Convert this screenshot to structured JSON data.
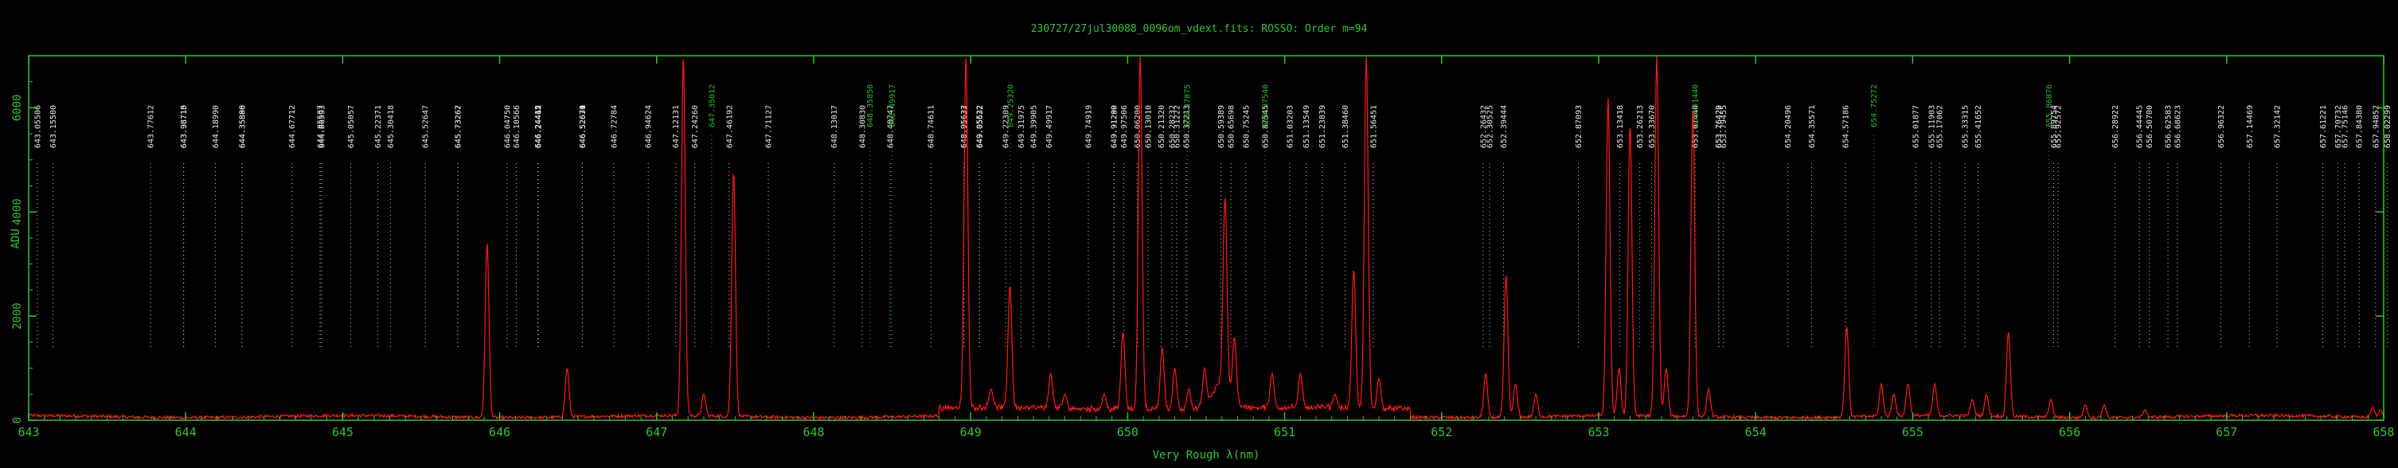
{
  "chart_data": {
    "type": "line",
    "title": "230727/27jul30088_0096om_vdext.fits: ROSSO: Order m=94",
    "xlabel": "Very Rough λ(nm)",
    "ylabel": "ADU",
    "xlim": [
      643,
      658
    ],
    "ylim": [
      0,
      7000
    ],
    "xticks": [
      "643",
      "644",
      "645",
      "646",
      "647",
      "648",
      "649",
      "650",
      "651",
      "652",
      "653",
      "654",
      "655",
      "656",
      "657",
      "658"
    ],
    "yticks": [
      "0",
      "2000",
      "4000",
      "6000"
    ],
    "grid": false,
    "colors": {
      "axis": "#36c236",
      "spectrum": "#ff1a1a",
      "label_white": "#e8e8e8",
      "label_green": "#2fb52f"
    },
    "line_labels_white": [
      "643.05506",
      "643.15500",
      "643.77612",
      "643.98710",
      "643.98715",
      "644.18990",
      "644.35896",
      "644.35880",
      "644.67712",
      "644.85587",
      "644.86593",
      "645.05057",
      "645.22371",
      "645.30418",
      "645.52647",
      "645.73267",
      "645.73262",
      "646.04750",
      "646.10566",
      "646.24412",
      "646.24415",
      "646.24462",
      "646.52679",
      "646.52671",
      "646.52634",
      "646.72784",
      "646.94624",
      "647.12131",
      "647.24260",
      "647.46192",
      "647.71127",
      "648.13017",
      "648.30830",
      "648.48747",
      "648.74611",
      "648.95633",
      "648.95637",
      "649.05632",
      "649.05522",
      "649.22309",
      "649.31975",
      "649.39905",
      "649.49917",
      "649.74919",
      "649.91280",
      "649.91299",
      "649.97506",
      "650.06200",
      "650.13010",
      "650.21320",
      "650.28232",
      "650.31222",
      "650.37213",
      "650.59389",
      "650.65698",
      "650.75245",
      "650.87545",
      "651.03203",
      "651.13549",
      "651.23839",
      "651.38460",
      "651.56451",
      "652.26432",
      "652.30525",
      "652.39444",
      "652.87093",
      "653.13418",
      "653.26213",
      "653.33670",
      "653.61440",
      "653.76422",
      "653.76420",
      "653.79455",
      "654.20496",
      "654.35571",
      "654.57186",
      "655.01877",
      "655.11903",
      "655.17062",
      "655.33315",
      "655.41652",
      "655.89754",
      "655.92572",
      "656.28922",
      "656.44445",
      "656.50700",
      "656.62583",
      "656.68623",
      "656.96322",
      "657.14469",
      "657.32142",
      "657.61221",
      "657.70732",
      "657.75146",
      "657.84380",
      "657.94852",
      "658.02299"
    ],
    "line_labels_green": [
      "647.35012",
      "648.35850",
      "648.49917",
      "649.25320",
      "650.37875",
      "650.87540",
      "653.61440",
      "654.75272",
      "655.86876"
    ],
    "emission_peaks": [
      {
        "x": 645.92,
        "y": 3400
      },
      {
        "x": 646.43,
        "y": 1000
      },
      {
        "x": 647.17,
        "y": 7000
      },
      {
        "x": 647.3,
        "y": 500
      },
      {
        "x": 647.49,
        "y": 4800
      },
      {
        "x": 648.97,
        "y": 7000
      },
      {
        "x": 649.13,
        "y": 600
      },
      {
        "x": 649.25,
        "y": 2600
      },
      {
        "x": 649.51,
        "y": 900
      },
      {
        "x": 649.6,
        "y": 500
      },
      {
        "x": 649.85,
        "y": 500
      },
      {
        "x": 649.97,
        "y": 1700
      },
      {
        "x": 650.08,
        "y": 7000
      },
      {
        "x": 650.22,
        "y": 1400
      },
      {
        "x": 650.3,
        "y": 1000
      },
      {
        "x": 650.39,
        "y": 600
      },
      {
        "x": 650.49,
        "y": 1000
      },
      {
        "x": 650.62,
        "y": 4300
      },
      {
        "x": 650.68,
        "y": 1600
      },
      {
        "x": 650.92,
        "y": 900
      },
      {
        "x": 651.1,
        "y": 900
      },
      {
        "x": 651.32,
        "y": 500
      },
      {
        "x": 651.44,
        "y": 2900
      },
      {
        "x": 651.52,
        "y": 7000
      },
      {
        "x": 651.6,
        "y": 800
      },
      {
        "x": 652.28,
        "y": 900
      },
      {
        "x": 652.41,
        "y": 2800
      },
      {
        "x": 652.47,
        "y": 700
      },
      {
        "x": 652.6,
        "y": 500
      },
      {
        "x": 653.06,
        "y": 6200
      },
      {
        "x": 653.13,
        "y": 1000
      },
      {
        "x": 653.2,
        "y": 5700
      },
      {
        "x": 653.37,
        "y": 7000
      },
      {
        "x": 653.43,
        "y": 1000
      },
      {
        "x": 653.6,
        "y": 6000
      },
      {
        "x": 653.7,
        "y": 600
      },
      {
        "x": 654.58,
        "y": 1800
      },
      {
        "x": 654.8,
        "y": 700
      },
      {
        "x": 654.88,
        "y": 500
      },
      {
        "x": 654.97,
        "y": 700
      },
      {
        "x": 655.14,
        "y": 700
      },
      {
        "x": 655.38,
        "y": 400
      },
      {
        "x": 655.47,
        "y": 500
      },
      {
        "x": 655.61,
        "y": 1700
      },
      {
        "x": 655.88,
        "y": 400
      },
      {
        "x": 656.1,
        "y": 300
      },
      {
        "x": 656.22,
        "y": 300
      },
      {
        "x": 656.48,
        "y": 200
      },
      {
        "x": 657.93,
        "y": 250
      },
      {
        "x": 657.98,
        "y": 200
      }
    ]
  }
}
